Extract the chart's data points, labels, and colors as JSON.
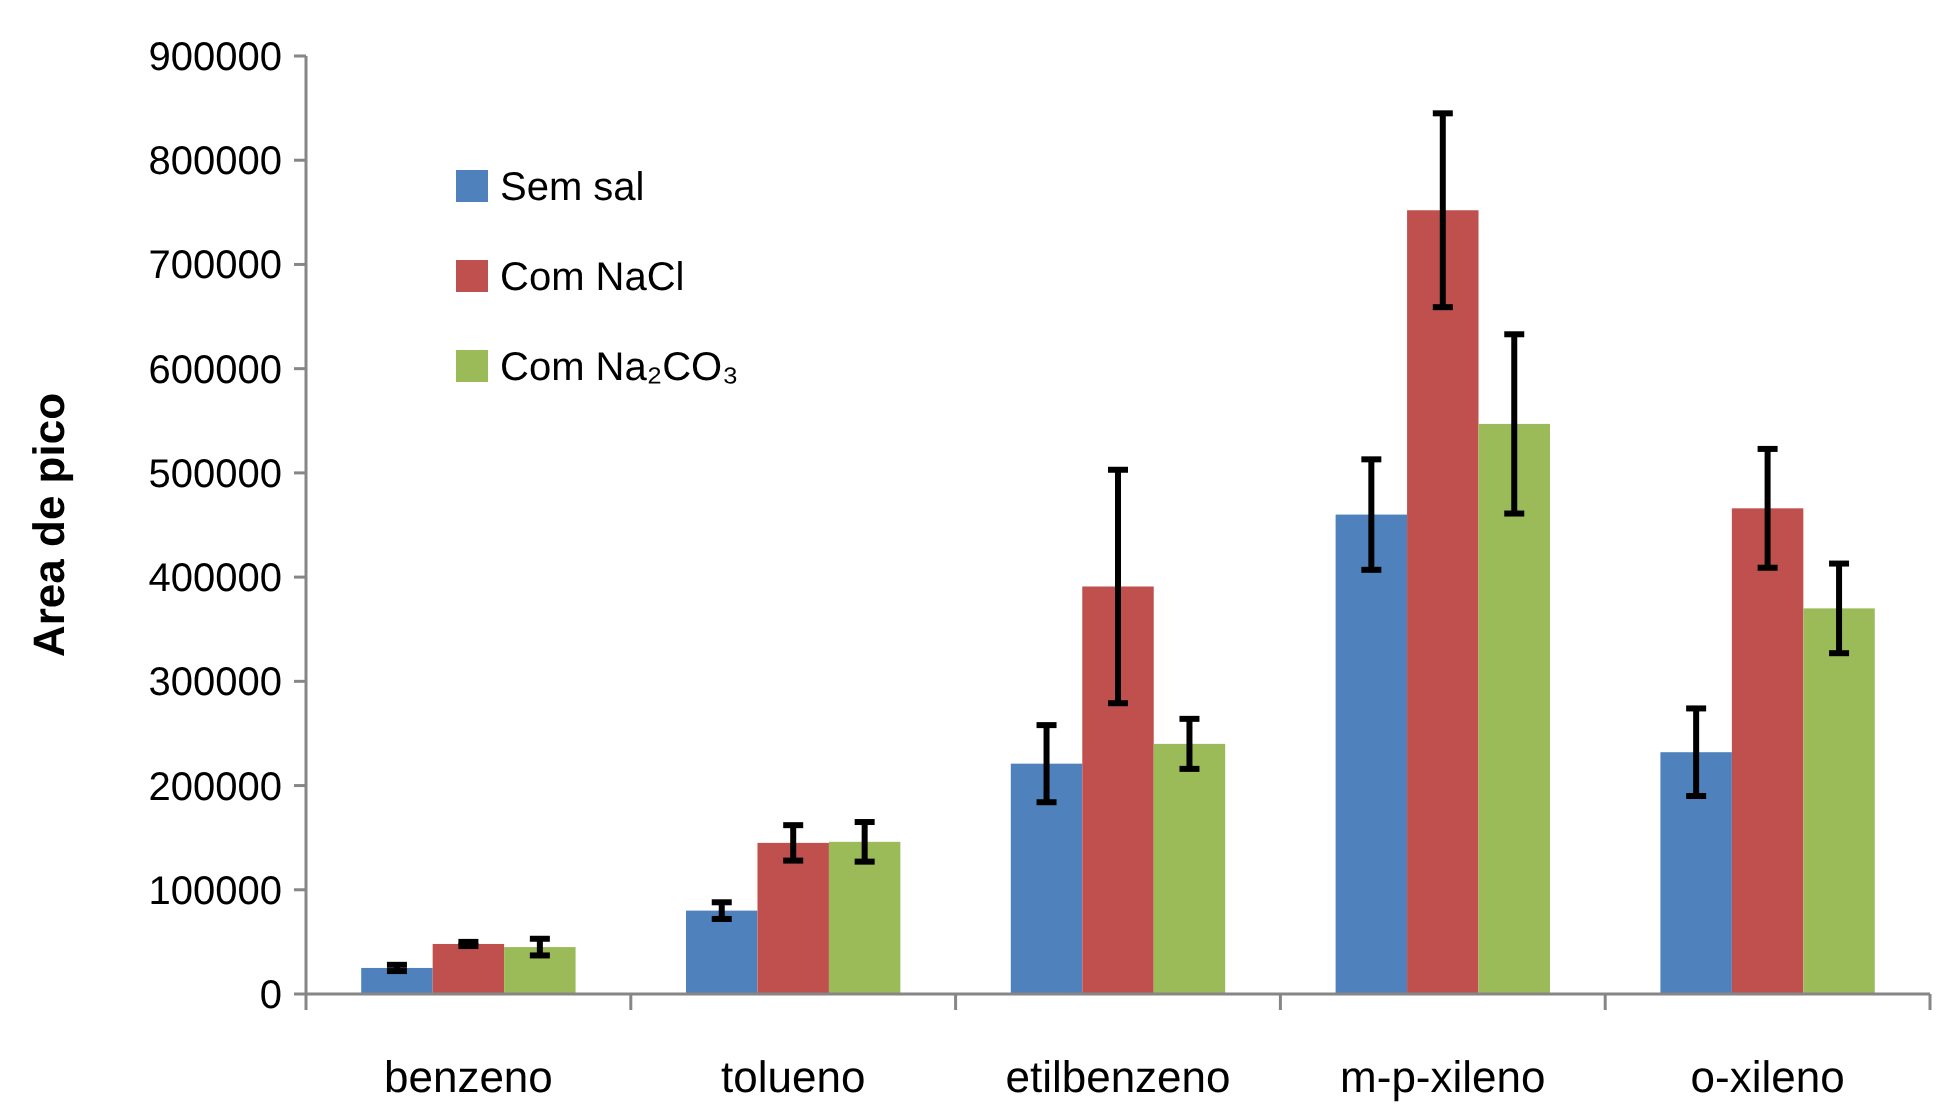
{
  "chart_data": {
    "type": "bar",
    "ylabel": "Area de pico",
    "categories": [
      "benzeno",
      "tolueno",
      "etilbenzeno",
      "m-p-xileno",
      "o-xileno"
    ],
    "series": [
      {
        "name": "Sem sal",
        "color": "#4f81bd",
        "values": [
          25000,
          80000,
          221000,
          460000,
          232000
        ],
        "errors": [
          3000,
          8000,
          37000,
          53000,
          42000
        ]
      },
      {
        "name": "Com NaCl",
        "color": "#c0504d",
        "values": [
          48000,
          145000,
          391000,
          752000,
          466000
        ],
        "errors": [
          2000,
          17000,
          112000,
          93000,
          57000
        ]
      },
      {
        "name": "Com Na₂CO₃",
        "color": "#9bbb59",
        "values": [
          45000,
          146000,
          240000,
          547000,
          370000
        ],
        "errors": [
          8000,
          19000,
          24000,
          86000,
          43000
        ]
      }
    ],
    "ylim": [
      0,
      900000
    ],
    "yticks": [
      0,
      100000,
      200000,
      300000,
      400000,
      500000,
      600000,
      700000,
      800000,
      900000
    ],
    "grid": false,
    "legend": "top left"
  }
}
